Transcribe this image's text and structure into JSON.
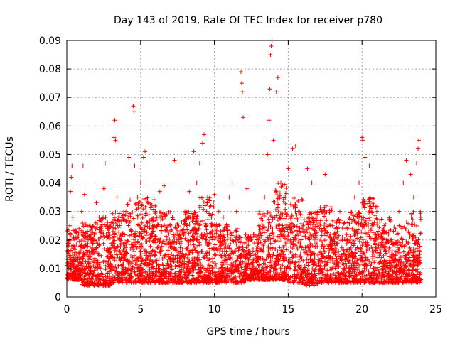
{
  "chart_data": {
    "type": "scatter",
    "title": "Day 143 of 2019, Rate Of TEC Index for receiver p780",
    "xlabel": "GPS time / hours",
    "ylabel": "ROTI / TECUs",
    "xlim": [
      0,
      25
    ],
    "ylim": [
      0,
      0.09
    ],
    "x_ticks": [
      0,
      5,
      10,
      15,
      20,
      25
    ],
    "y_ticks": [
      0,
      0.01,
      0.02,
      0.03,
      0.04,
      0.05,
      0.06,
      0.07,
      0.08,
      0.09
    ],
    "x_tick_labels": [
      "0",
      "5",
      "10",
      "15",
      "20",
      "25"
    ],
    "y_tick_labels": [
      "0",
      "0.01",
      "0.02",
      "0.03",
      "0.04",
      "0.05",
      "0.06",
      "0.07",
      "0.08",
      "0.09"
    ],
    "grid": true,
    "legend": "none",
    "marker": "plus",
    "color": "#ff0000",
    "series": [
      {
        "points": [
          [
            0.05,
            0.012
          ],
          [
            0.1,
            0.018
          ],
          [
            0.15,
            0.008
          ],
          [
            0.2,
            0.025
          ],
          [
            0.25,
            0.037
          ],
          [
            0.3,
            0.042
          ],
          [
            0.35,
            0.046
          ],
          [
            0.4,
            0.028
          ],
          [
            0.5,
            0.015
          ],
          [
            0.6,
            0.01
          ],
          [
            0.8,
            0.022
          ],
          [
            1.0,
            0.03
          ],
          [
            1.1,
            0.046
          ],
          [
            1.2,
            0.036
          ],
          [
            1.4,
            0.025
          ],
          [
            1.6,
            0.014
          ],
          [
            1.8,
            0.02
          ],
          [
            2.0,
            0.033
          ],
          [
            2.2,
            0.028
          ],
          [
            2.5,
            0.038
          ],
          [
            2.6,
            0.047
          ],
          [
            2.8,
            0.024
          ],
          [
            3.0,
            0.026
          ],
          [
            3.2,
            0.056
          ],
          [
            3.25,
            0.062
          ],
          [
            3.3,
            0.055
          ],
          [
            3.4,
            0.035
          ],
          [
            3.6,
            0.02
          ],
          [
            3.8,
            0.028
          ],
          [
            4.0,
            0.03
          ],
          [
            4.2,
            0.049
          ],
          [
            4.5,
            0.067
          ],
          [
            4.55,
            0.065
          ],
          [
            4.6,
            0.046
          ],
          [
            4.8,
            0.035
          ],
          [
            5.0,
            0.04
          ],
          [
            5.2,
            0.049
          ],
          [
            5.3,
            0.051
          ],
          [
            5.5,
            0.033
          ],
          [
            5.8,
            0.025
          ],
          [
            6.0,
            0.03
          ],
          [
            6.3,
            0.037
          ],
          [
            6.6,
            0.039
          ],
          [
            7.0,
            0.025
          ],
          [
            7.3,
            0.048
          ],
          [
            7.6,
            0.02
          ],
          [
            8.0,
            0.03
          ],
          [
            8.3,
            0.037
          ],
          [
            8.6,
            0.051
          ],
          [
            8.8,
            0.04
          ],
          [
            9.0,
            0.047
          ],
          [
            9.2,
            0.054
          ],
          [
            9.3,
            0.057
          ],
          [
            9.5,
            0.033
          ],
          [
            9.8,
            0.028
          ],
          [
            10.0,
            0.036
          ],
          [
            10.3,
            0.03
          ],
          [
            10.6,
            0.028
          ],
          [
            11.0,
            0.035
          ],
          [
            11.2,
            0.04
          ],
          [
            11.5,
            0.03
          ],
          [
            11.8,
            0.079
          ],
          [
            11.85,
            0.075
          ],
          [
            11.9,
            0.072
          ],
          [
            11.95,
            0.063
          ],
          [
            12.2,
            0.038
          ],
          [
            12.5,
            0.02
          ],
          [
            13.0,
            0.025
          ],
          [
            13.4,
            0.035
          ],
          [
            13.6,
            0.05
          ],
          [
            13.7,
            0.062
          ],
          [
            13.75,
            0.073
          ],
          [
            13.8,
            0.085
          ],
          [
            13.85,
            0.088
          ],
          [
            13.9,
            0.09
          ],
          [
            14.0,
            0.055
          ],
          [
            14.2,
            0.072
          ],
          [
            14.3,
            0.077
          ],
          [
            14.5,
            0.04
          ],
          [
            14.8,
            0.035
          ],
          [
            15.0,
            0.045
          ],
          [
            15.3,
            0.052
          ],
          [
            15.5,
            0.053
          ],
          [
            15.7,
            0.03
          ],
          [
            16.0,
            0.025
          ],
          [
            16.3,
            0.045
          ],
          [
            16.6,
            0.04
          ],
          [
            17.0,
            0.03
          ],
          [
            17.5,
            0.043
          ],
          [
            18.0,
            0.025
          ],
          [
            18.5,
            0.03
          ],
          [
            19.0,
            0.02
          ],
          [
            19.5,
            0.035
          ],
          [
            19.8,
            0.04
          ],
          [
            20.0,
            0.056
          ],
          [
            20.05,
            0.055
          ],
          [
            20.2,
            0.049
          ],
          [
            20.5,
            0.046
          ],
          [
            21.0,
            0.03
          ],
          [
            21.5,
            0.025
          ],
          [
            22.0,
            0.02
          ],
          [
            22.5,
            0.03
          ],
          [
            22.8,
            0.04
          ],
          [
            23.0,
            0.048
          ],
          [
            23.3,
            0.043
          ],
          [
            23.5,
            0.035
          ],
          [
            23.7,
            0.047
          ],
          [
            23.8,
            0.052
          ],
          [
            23.85,
            0.055
          ],
          [
            23.95,
            0.03
          ]
        ]
      }
    ],
    "baseline_band": {
      "x_range": [
        0,
        24
      ],
      "y_band_by_hour": [
        [
          0.006,
          0.024
        ],
        [
          0.004,
          0.026
        ],
        [
          0.004,
          0.028
        ],
        [
          0.005,
          0.03
        ],
        [
          0.005,
          0.034
        ],
        [
          0.005,
          0.035
        ],
        [
          0.005,
          0.03
        ],
        [
          0.005,
          0.028
        ],
        [
          0.005,
          0.03
        ],
        [
          0.005,
          0.035
        ],
        [
          0.005,
          0.026
        ],
        [
          0.005,
          0.024
        ],
        [
          0.006,
          0.022
        ],
        [
          0.006,
          0.03
        ],
        [
          0.006,
          0.04
        ],
        [
          0.005,
          0.035
        ],
        [
          0.004,
          0.03
        ],
        [
          0.005,
          0.032
        ],
        [
          0.005,
          0.028
        ],
        [
          0.005,
          0.03
        ],
        [
          0.005,
          0.035
        ],
        [
          0.005,
          0.028
        ],
        [
          0.005,
          0.025
        ],
        [
          0.005,
          0.03
        ]
      ]
    }
  }
}
